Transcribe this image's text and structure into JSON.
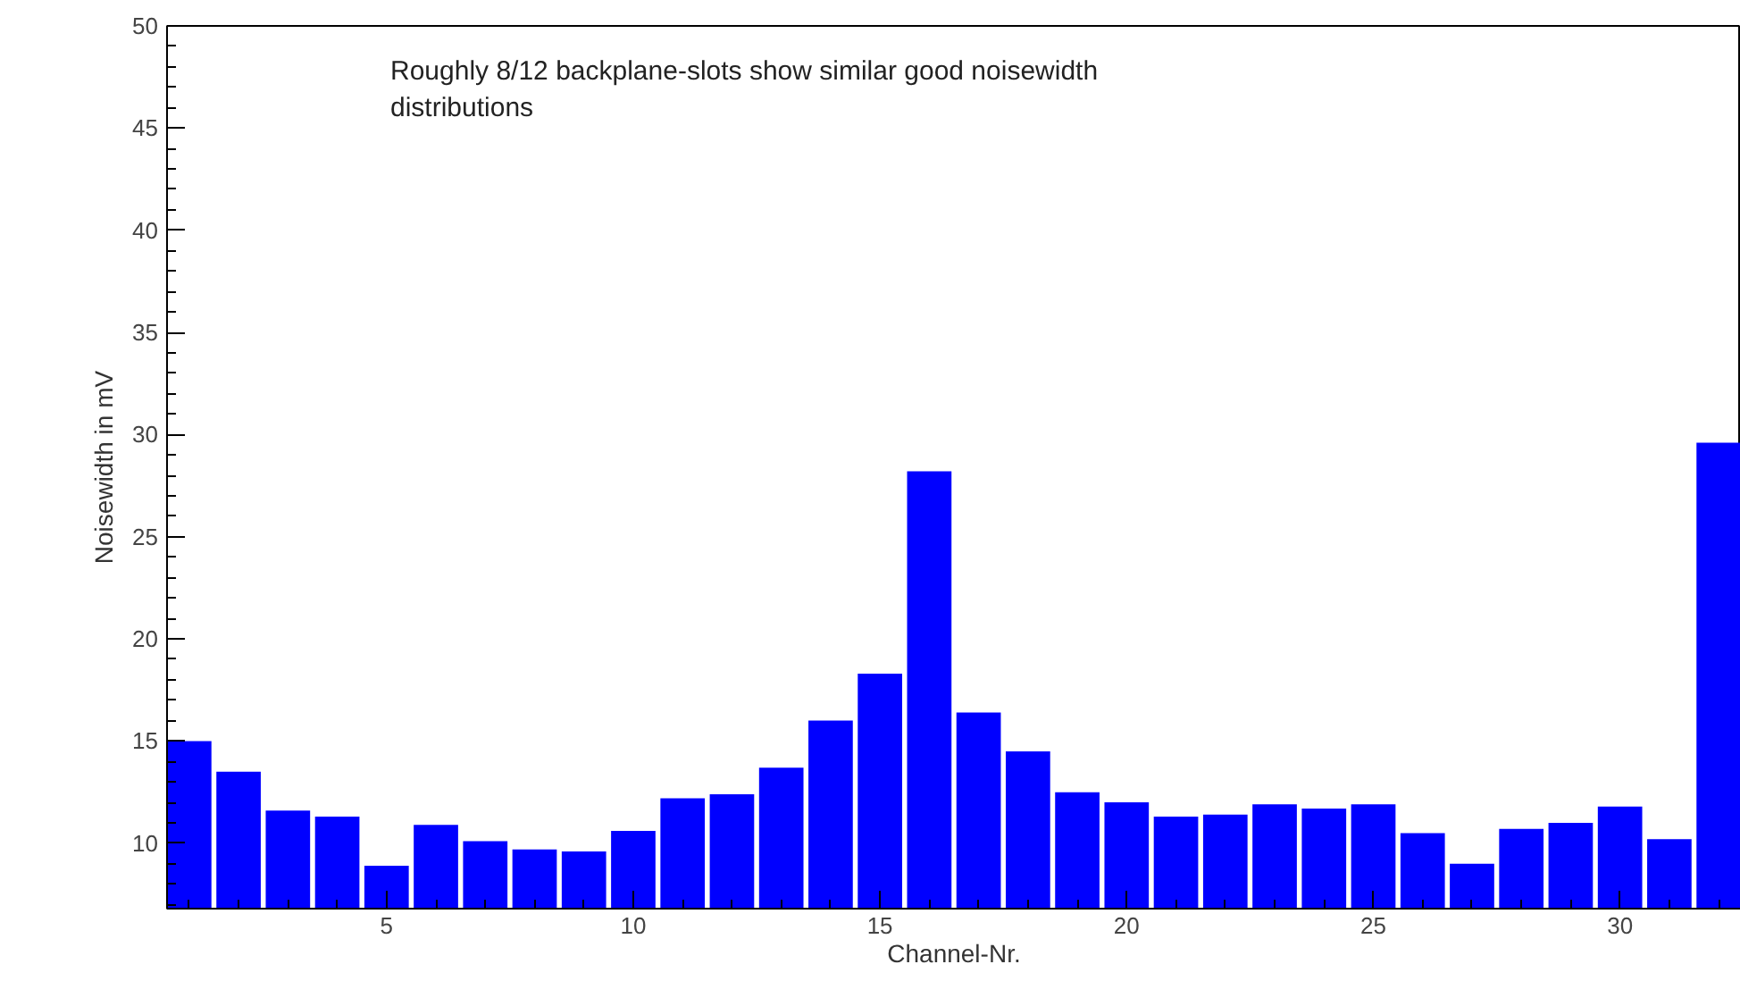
{
  "chart_data": {
    "type": "bar",
    "xlabel": "Channel-Nr.",
    "ylabel": "Noisewidth in mV",
    "annotations": [
      "Roughly 8/12 backplane-slots show similar good noisewidth distributions"
    ],
    "x": [
      1,
      2,
      3,
      4,
      5,
      6,
      7,
      8,
      9,
      10,
      11,
      12,
      13,
      14,
      15,
      16,
      17,
      18,
      19,
      20,
      21,
      22,
      23,
      24,
      25,
      26,
      27,
      28,
      29,
      30,
      31,
      32
    ],
    "series": [
      {
        "color": "#0000ff",
        "values": [
          15.0,
          13.5,
          11.6,
          11.3,
          8.9,
          10.9,
          10.1,
          9.7,
          9.6,
          10.6,
          12.2,
          12.4,
          13.7,
          16.0,
          18.3,
          28.2,
          16.4,
          14.5,
          12.5,
          12.0,
          11.3,
          11.4,
          11.9,
          11.7,
          11.9,
          10.5,
          9.0,
          10.7,
          11.0,
          11.8,
          10.2,
          29.6
        ]
      }
    ],
    "xlim": [
      0.55,
      32.45
    ],
    "ylim": [
      6.8,
      50
    ],
    "xticks": [
      5,
      10,
      15,
      20,
      25,
      30
    ],
    "yticks": [
      10,
      15,
      20,
      25,
      30,
      35,
      40,
      45,
      50
    ],
    "grid": false
  }
}
